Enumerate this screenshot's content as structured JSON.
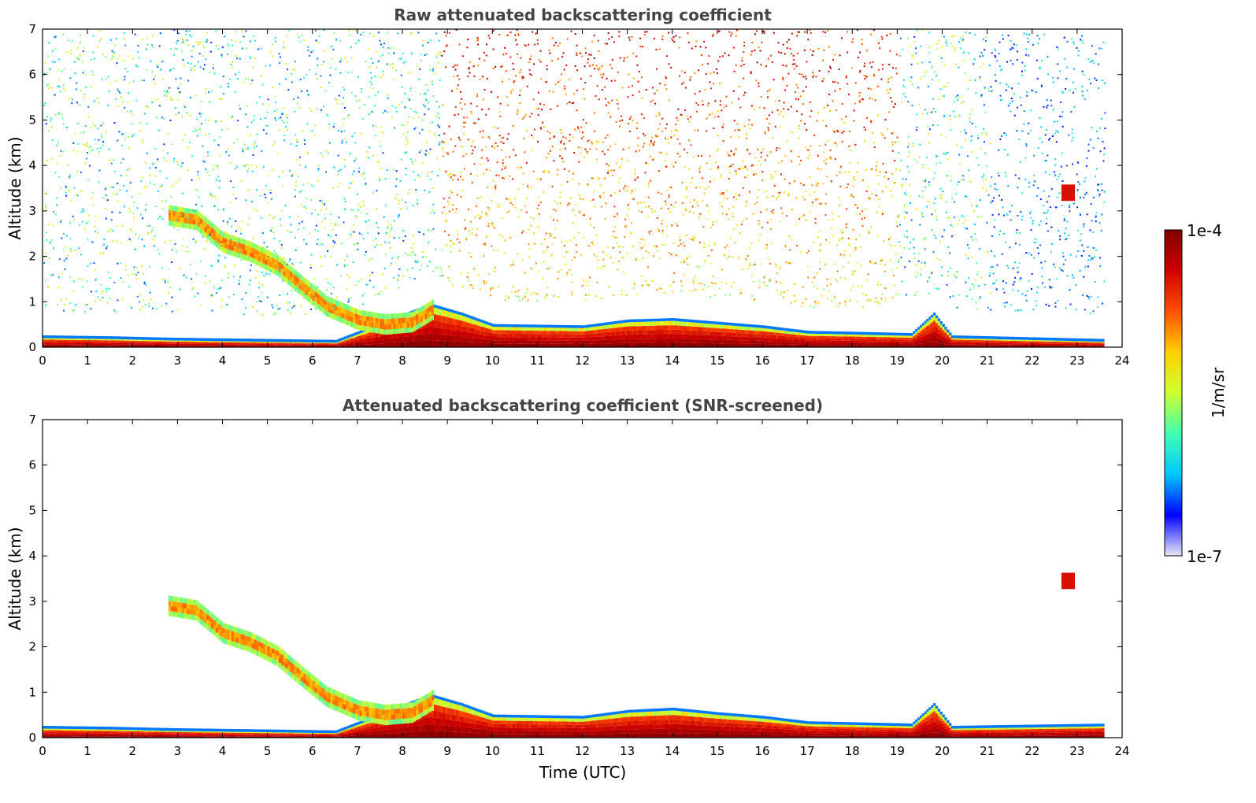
{
  "chart_data": [
    {
      "type": "heatmap",
      "title": "Raw attenuated backscattering coefficient",
      "xlabel": "",
      "ylabel": "Altitude (km)",
      "xlim": [
        0,
        24
      ],
      "ylim": [
        0,
        7
      ],
      "x_ticks": [
        "0",
        "1",
        "2",
        "3",
        "4",
        "5",
        "6",
        "7",
        "8",
        "9",
        "10",
        "11",
        "12",
        "13",
        "14",
        "15",
        "16",
        "17",
        "18",
        "19",
        "20",
        "21",
        "22",
        "23",
        "24"
      ],
      "y_ticks": [
        "0",
        "1",
        "2",
        "3",
        "4",
        "5",
        "6",
        "7"
      ],
      "grid": false,
      "screened": false,
      "boundary_layer_top_km": [
        {
          "t": 0,
          "h": 0.2
        },
        {
          "t": 1.5,
          "h": 0.18
        },
        {
          "t": 2.8,
          "h": 0.15
        },
        {
          "t": 6.5,
          "h": 0.1
        },
        {
          "t": 8.6,
          "h": 0.9
        },
        {
          "t": 9.3,
          "h": 0.7
        },
        {
          "t": 10,
          "h": 0.45
        },
        {
          "t": 12,
          "h": 0.42
        },
        {
          "t": 13,
          "h": 0.55
        },
        {
          "t": 14,
          "h": 0.58
        },
        {
          "t": 15,
          "h": 0.5
        },
        {
          "t": 16,
          "h": 0.42
        },
        {
          "t": 17,
          "h": 0.3
        },
        {
          "t": 18,
          "h": 0.28
        },
        {
          "t": 19.3,
          "h": 0.25
        },
        {
          "t": 19.8,
          "h": 0.7
        },
        {
          "t": 20.2,
          "h": 0.2
        },
        {
          "t": 23.6,
          "h": 0.12
        }
      ],
      "aerosol_layer": [
        {
          "t": 2.8,
          "h": 2.9
        },
        {
          "t": 3.4,
          "h": 2.8
        },
        {
          "t": 4.0,
          "h": 2.3
        },
        {
          "t": 4.6,
          "h": 2.1
        },
        {
          "t": 5.2,
          "h": 1.8
        },
        {
          "t": 5.8,
          "h": 1.3
        },
        {
          "t": 6.3,
          "h": 0.9
        },
        {
          "t": 7.0,
          "h": 0.6
        },
        {
          "t": 7.6,
          "h": 0.5
        },
        {
          "t": 8.2,
          "h": 0.55
        },
        {
          "t": 8.7,
          "h": 0.85
        }
      ],
      "isolated_cloud": {
        "t": 22.8,
        "h": 3.4
      }
    },
    {
      "type": "heatmap",
      "title": "Attenuated backscattering coefficient (SNR-screened)",
      "xlabel": "Time (UTC)",
      "ylabel": "Altitude (km)",
      "xlim": [
        0,
        24
      ],
      "ylim": [
        0,
        7
      ],
      "x_ticks": [
        "0",
        "1",
        "2",
        "3",
        "4",
        "5",
        "6",
        "7",
        "8",
        "9",
        "10",
        "11",
        "12",
        "13",
        "14",
        "15",
        "16",
        "17",
        "18",
        "19",
        "20",
        "21",
        "22",
        "23",
        "24"
      ],
      "y_ticks": [
        "0",
        "1",
        "2",
        "3",
        "4",
        "5",
        "6",
        "7"
      ],
      "grid": false,
      "screened": true,
      "boundary_layer_top_km": [
        {
          "t": 0,
          "h": 0.2
        },
        {
          "t": 1.5,
          "h": 0.18
        },
        {
          "t": 2.8,
          "h": 0.15
        },
        {
          "t": 6.5,
          "h": 0.1
        },
        {
          "t": 8.6,
          "h": 0.9
        },
        {
          "t": 9.3,
          "h": 0.7
        },
        {
          "t": 10,
          "h": 0.45
        },
        {
          "t": 12,
          "h": 0.42
        },
        {
          "t": 13,
          "h": 0.55
        },
        {
          "t": 14,
          "h": 0.6
        },
        {
          "t": 15,
          "h": 0.5
        },
        {
          "t": 16,
          "h": 0.42
        },
        {
          "t": 17,
          "h": 0.3
        },
        {
          "t": 18,
          "h": 0.28
        },
        {
          "t": 19.3,
          "h": 0.25
        },
        {
          "t": 19.8,
          "h": 0.7
        },
        {
          "t": 20.2,
          "h": 0.2
        },
        {
          "t": 23.6,
          "h": 0.25
        }
      ],
      "aerosol_layer": [
        {
          "t": 2.8,
          "h": 2.9
        },
        {
          "t": 3.4,
          "h": 2.8
        },
        {
          "t": 4.0,
          "h": 2.3
        },
        {
          "t": 4.6,
          "h": 2.1
        },
        {
          "t": 5.2,
          "h": 1.8
        },
        {
          "t": 5.8,
          "h": 1.3
        },
        {
          "t": 6.3,
          "h": 0.9
        },
        {
          "t": 7.0,
          "h": 0.6
        },
        {
          "t": 7.6,
          "h": 0.5
        },
        {
          "t": 8.2,
          "h": 0.55
        },
        {
          "t": 8.7,
          "h": 0.85
        }
      ],
      "isolated_cloud": {
        "t": 22.8,
        "h": 3.45
      }
    }
  ],
  "colorbar": {
    "label": "1/m/sr",
    "max_label": "1e-4",
    "min_label": "1e-7",
    "colormap": "jet",
    "stops": [
      "#e8e8f8",
      "#0000ff",
      "#00c8ff",
      "#40ffb0",
      "#d0ff30",
      "#ffd000",
      "#ff5000",
      "#d00000",
      "#800000"
    ]
  }
}
